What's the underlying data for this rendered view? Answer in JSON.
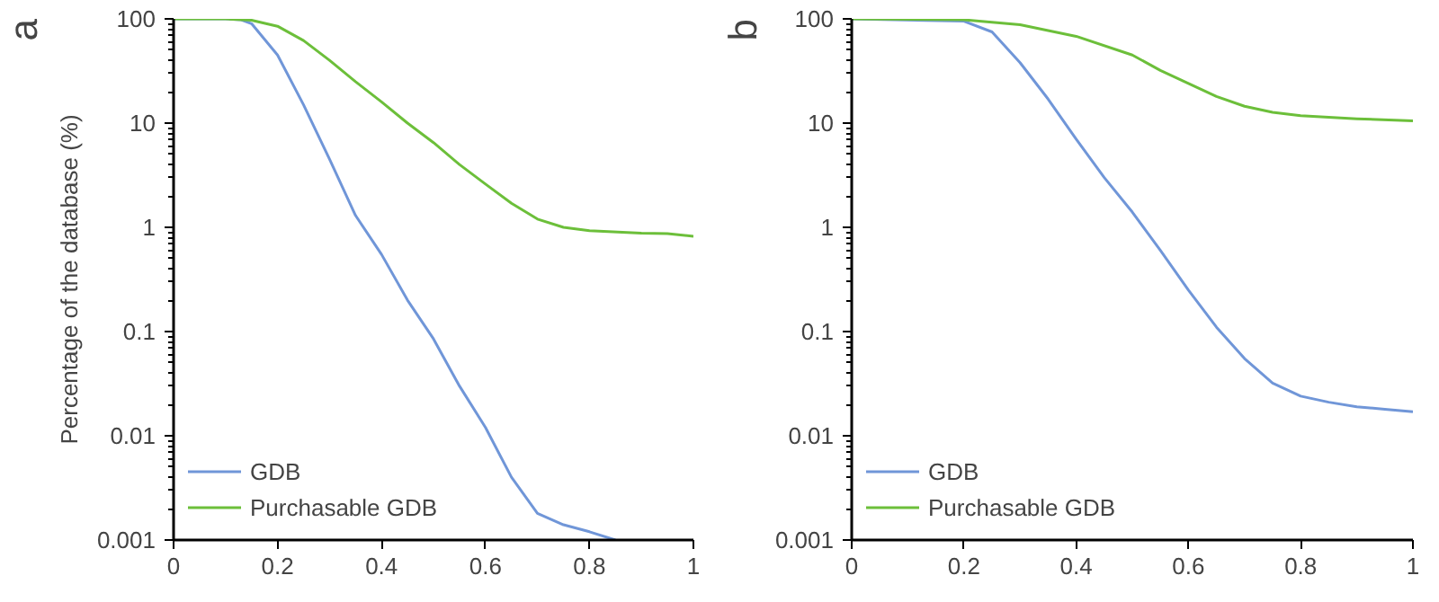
{
  "chart_data": [
    {
      "type": "line",
      "title": "a",
      "ylabel": "Percentage of the database (%)",
      "log": "y",
      "legend": "bottom left",
      "grid": false,
      "xlim": [
        0,
        1
      ],
      "xticks": [
        0,
        0.2,
        0.4,
        0.6,
        0.8,
        1
      ],
      "ylim": [
        0.001,
        100
      ],
      "yticks": [
        0.001,
        0.01,
        0.1,
        1,
        10,
        100
      ],
      "series": [
        {
          "name": "GDB",
          "color": "#7096d8",
          "x": [
            0,
            0.1,
            0.13,
            0.15,
            0.2,
            0.25,
            0.3,
            0.35,
            0.4,
            0.45,
            0.5,
            0.55,
            0.6,
            0.65,
            0.7,
            0.75,
            0.8,
            0.85
          ],
          "values": [
            100,
            100,
            98,
            90,
            45,
            15,
            4.5,
            1.3,
            0.55,
            0.2,
            0.085,
            0.03,
            0.012,
            0.004,
            0.0018,
            0.0014,
            0.0012,
            0.001
          ]
        },
        {
          "name": "Purchasable GDB",
          "color": "#6cbf3a",
          "x": [
            0,
            0.1,
            0.15,
            0.2,
            0.25,
            0.3,
            0.35,
            0.4,
            0.45,
            0.5,
            0.55,
            0.6,
            0.65,
            0.7,
            0.75,
            0.8,
            0.9,
            0.95,
            1
          ],
          "values": [
            100,
            100,
            97,
            85,
            62,
            40,
            25,
            16,
            10,
            6.5,
            4,
            2.6,
            1.7,
            1.2,
            1.0,
            0.93,
            0.88,
            0.87,
            0.82
          ]
        }
      ]
    },
    {
      "type": "line",
      "title": "b",
      "log": "y",
      "legend": "bottom left",
      "grid": false,
      "xlim": [
        0,
        1
      ],
      "xticks": [
        0,
        0.2,
        0.4,
        0.6,
        0.8,
        1
      ],
      "ylim": [
        0.001,
        100
      ],
      "yticks": [
        0.001,
        0.01,
        0.1,
        1,
        10,
        100
      ],
      "series": [
        {
          "name": "GDB",
          "color": "#7096d8",
          "x": [
            0,
            0.2,
            0.25,
            0.3,
            0.35,
            0.4,
            0.45,
            0.5,
            0.55,
            0.6,
            0.65,
            0.7,
            0.75,
            0.8,
            0.85,
            0.9,
            0.95,
            1
          ],
          "values": [
            100,
            95,
            75,
            38,
            17,
            7,
            3,
            1.4,
            0.6,
            0.25,
            0.11,
            0.055,
            0.032,
            0.024,
            0.021,
            0.019,
            0.018,
            0.017
          ]
        },
        {
          "name": "Purchasable GDB",
          "color": "#6cbf3a",
          "x": [
            0,
            0.2,
            0.3,
            0.4,
            0.5,
            0.55,
            0.6,
            0.65,
            0.7,
            0.75,
            0.8,
            0.9,
            1
          ],
          "values": [
            100,
            98,
            88,
            68,
            45,
            32,
            24,
            18,
            14.5,
            12.7,
            11.8,
            11,
            10.5
          ]
        }
      ]
    }
  ]
}
